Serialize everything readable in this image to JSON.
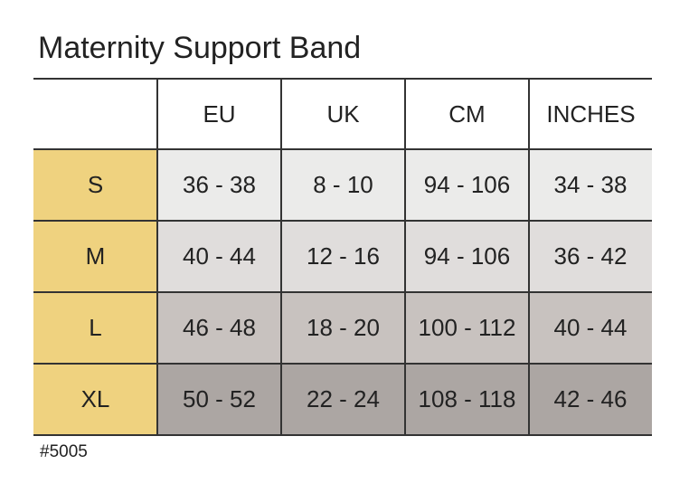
{
  "title": "Maternity Support Band",
  "table": {
    "header": [
      "EU",
      "UK",
      "CM",
      "INCHES"
    ],
    "rows": [
      {
        "size": "S",
        "cells": [
          "36 - 38",
          "8 - 10",
          "94 - 106",
          "34 - 38"
        ]
      },
      {
        "size": "M",
        "cells": [
          "40 - 44",
          "12 - 16",
          "94 - 106",
          "36 - 42"
        ]
      },
      {
        "size": "L",
        "cells": [
          "46 - 48",
          "18 - 20",
          "100 - 112",
          "40 - 44"
        ]
      },
      {
        "size": "XL",
        "cells": [
          "50 - 52",
          "22 - 24",
          "108 - 118",
          "42 - 46"
        ]
      }
    ]
  },
  "footnote": "#5005"
}
